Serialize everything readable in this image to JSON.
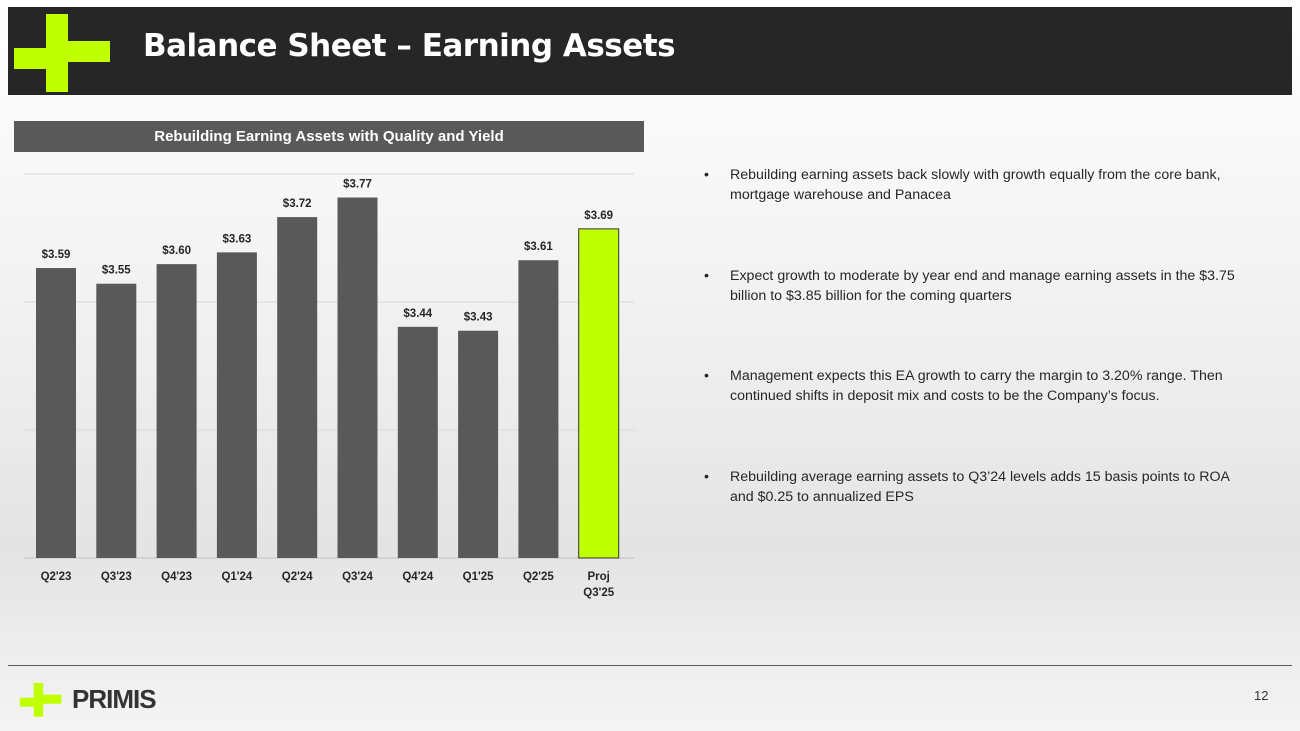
{
  "header": {
    "title": "Balance Sheet – Earning Assets"
  },
  "chart_panel": {
    "heading": "Rebuilding Earning Assets with Quality and Yield"
  },
  "chart_data": {
    "type": "bar",
    "categories": [
      "Q2'23",
      "Q3'23",
      "Q4'23",
      "Q1'24",
      "Q2'24",
      "Q3'24",
      "Q4'24",
      "Q1'25",
      "Q2'25",
      "Proj Q3'25"
    ],
    "values": [
      3.59,
      3.55,
      3.6,
      3.63,
      3.72,
      3.77,
      3.44,
      3.43,
      3.61,
      3.69
    ],
    "value_labels": [
      "$3.59",
      "$3.55",
      "$3.60",
      "$3.63",
      "$3.72",
      "$3.77",
      "$3.44",
      "$3.43",
      "$3.61",
      "$3.69"
    ],
    "title": "Rebuilding Earning Assets with Quality and Yield",
    "xlabel": "",
    "ylabel": "",
    "ylim": [
      2.85,
      3.83
    ],
    "grid": true,
    "colors": {
      "bar": "#595959",
      "highlight": "#bfff00",
      "highlight_border": "#333333"
    }
  },
  "bullets": [
    "Rebuilding earning assets back slowly with growth equally from the core bank, mortgage warehouse and Panacea",
    "Expect growth to moderate by year end and manage earning assets in the $3.75 billion to $3.85 billion for the coming quarters",
    "Management expects this EA growth to carry the margin to 3.20% range. Then continued shifts in deposit mix and costs to be the Company’s focus.",
    "Rebuilding average earning assets to Q3’24 levels adds 15 basis points to ROA and $0.25 to annualized EPS"
  ],
  "footer": {
    "brand": "PRIMIS",
    "page_number": "12"
  },
  "colors": {
    "accent": "#bfff00",
    "header_bg": "#262626",
    "panel_bg": "#595959"
  },
  "icons": {
    "logo": "primis-cross-logo"
  }
}
